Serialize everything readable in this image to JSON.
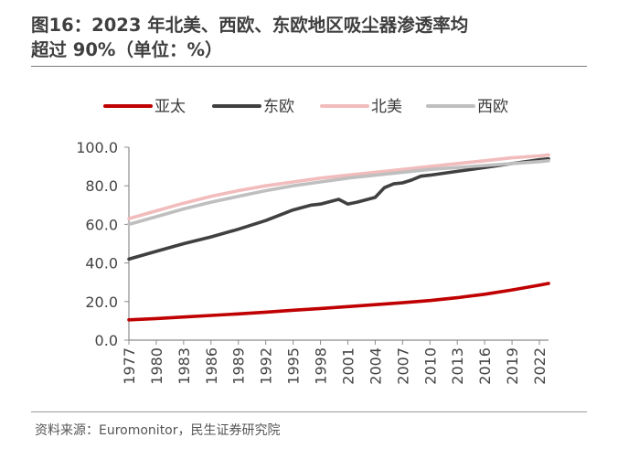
{
  "header": {
    "title_line1": "图16：2023 年北美、西欧、东欧地区吸尘器渗透率均",
    "title_line2": "超过 90%（单位：%）"
  },
  "footer": {
    "source": "资料来源：Euromonitor，民生证券研究院"
  },
  "colors": {
    "亚太": "#c00000",
    "东欧": "#404040",
    "北美": "#f2bcbc",
    "西欧": "#bfbfbf"
  },
  "chart_data": {
    "type": "line",
    "title": "",
    "xlabel": "",
    "ylabel": "",
    "ylim": [
      0,
      100
    ],
    "yticks": [
      "0.0",
      "20.0",
      "40.0",
      "60.0",
      "80.0",
      "100.0"
    ],
    "xlim": [
      1977,
      2023
    ],
    "xticks": [
      "1977",
      "1980",
      "1983",
      "1986",
      "1989",
      "1992",
      "1995",
      "1998",
      "2001",
      "2004",
      "2007",
      "2010",
      "2013",
      "2016",
      "2019",
      "2022"
    ],
    "legend_position": "top",
    "grid": false,
    "series": [
      {
        "name": "亚太",
        "points": [
          [
            1977,
            10.5
          ],
          [
            1980,
            11.2
          ],
          [
            1983,
            12.0
          ],
          [
            1986,
            12.8
          ],
          [
            1989,
            13.6
          ],
          [
            1992,
            14.5
          ],
          [
            1995,
            15.5
          ],
          [
            1998,
            16.4
          ],
          [
            2001,
            17.4
          ],
          [
            2004,
            18.4
          ],
          [
            2007,
            19.4
          ],
          [
            2010,
            20.5
          ],
          [
            2013,
            22.0
          ],
          [
            2016,
            23.8
          ],
          [
            2019,
            26.0
          ],
          [
            2022,
            28.5
          ],
          [
            2023,
            29.4
          ]
        ]
      },
      {
        "name": "东欧",
        "points": [
          [
            1977,
            42
          ],
          [
            1980,
            46
          ],
          [
            1983,
            50
          ],
          [
            1986,
            53.5
          ],
          [
            1989,
            57.5
          ],
          [
            1992,
            62
          ],
          [
            1995,
            67.5
          ],
          [
            1997,
            70
          ],
          [
            1998,
            70.5
          ],
          [
            2000,
            73
          ],
          [
            2001,
            70.5
          ],
          [
            2002,
            71.5
          ],
          [
            2004,
            74
          ],
          [
            2005,
            79
          ],
          [
            2006,
            81
          ],
          [
            2007,
            81.5
          ],
          [
            2008,
            83
          ],
          [
            2009,
            85
          ],
          [
            2010,
            85.5
          ],
          [
            2013,
            87.5
          ],
          [
            2016,
            89.5
          ],
          [
            2019,
            91.5
          ],
          [
            2022,
            93.5
          ],
          [
            2023,
            94
          ]
        ]
      },
      {
        "name": "北美",
        "points": [
          [
            1977,
            63
          ],
          [
            1980,
            67
          ],
          [
            1983,
            71
          ],
          [
            1986,
            74.5
          ],
          [
            1989,
            77.5
          ],
          [
            1992,
            80
          ],
          [
            1995,
            82
          ],
          [
            1998,
            84
          ],
          [
            2001,
            85.5
          ],
          [
            2004,
            87
          ],
          [
            2007,
            88.5
          ],
          [
            2010,
            90
          ],
          [
            2013,
            91.5
          ],
          [
            2016,
            93
          ],
          [
            2019,
            94.5
          ],
          [
            2022,
            95.5
          ],
          [
            2023,
            96
          ]
        ]
      },
      {
        "name": "西欧",
        "points": [
          [
            1977,
            60
          ],
          [
            1980,
            64
          ],
          [
            1983,
            68
          ],
          [
            1986,
            71.5
          ],
          [
            1989,
            74.5
          ],
          [
            1992,
            77.5
          ],
          [
            1995,
            80
          ],
          [
            1998,
            82
          ],
          [
            2001,
            84
          ],
          [
            2004,
            85.5
          ],
          [
            2007,
            87
          ],
          [
            2010,
            88.5
          ],
          [
            2013,
            89.5
          ],
          [
            2016,
            90.5
          ],
          [
            2019,
            91.5
          ],
          [
            2022,
            92.5
          ],
          [
            2023,
            93
          ]
        ]
      }
    ]
  }
}
